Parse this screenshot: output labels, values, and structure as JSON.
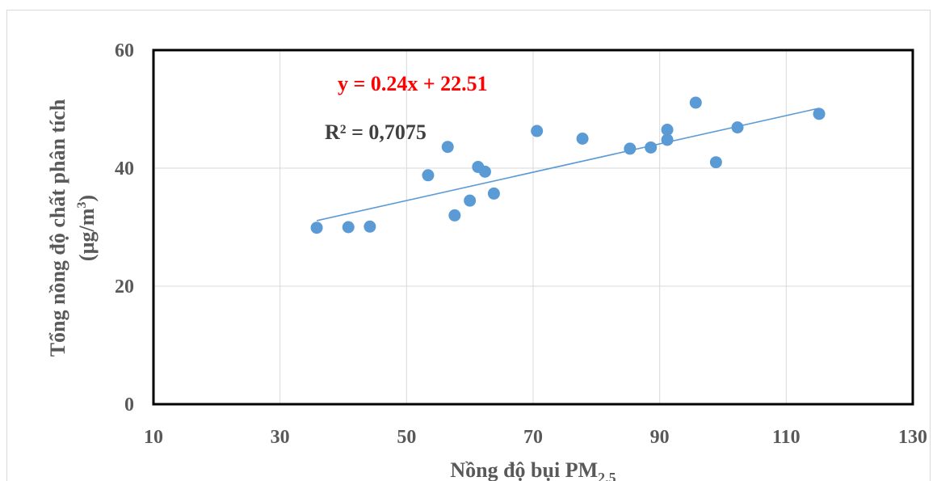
{
  "chart_data": {
    "type": "scatter",
    "xlabel": "Nồng độ bụi PM",
    "xlabel_subscript": "2.5",
    "ylabel_line1": "Tổng nồng độ chất phân tích",
    "ylabel_line2_prefix": "(µg/m",
    "ylabel_line2_superscript": "3",
    "ylabel_line2_suffix": ")",
    "xlim": [
      10,
      130
    ],
    "ylim": [
      0,
      60
    ],
    "x_ticks": [
      10,
      30,
      50,
      70,
      90,
      110,
      130
    ],
    "y_ticks": [
      0,
      20,
      40,
      60
    ],
    "grid": true,
    "points": [
      {
        "x": 35.8,
        "y": 29.9
      },
      {
        "x": 40.8,
        "y": 30.0
      },
      {
        "x": 44.2,
        "y": 30.1
      },
      {
        "x": 53.4,
        "y": 38.8
      },
      {
        "x": 56.5,
        "y": 43.6
      },
      {
        "x": 57.6,
        "y": 32.0
      },
      {
        "x": 60.0,
        "y": 34.5
      },
      {
        "x": 61.3,
        "y": 40.2
      },
      {
        "x": 62.4,
        "y": 39.4
      },
      {
        "x": 63.8,
        "y": 35.7
      },
      {
        "x": 70.6,
        "y": 46.3
      },
      {
        "x": 77.8,
        "y": 45.0
      },
      {
        "x": 85.3,
        "y": 43.3
      },
      {
        "x": 88.6,
        "y": 43.5
      },
      {
        "x": 91.2,
        "y": 46.5
      },
      {
        "x": 91.2,
        "y": 44.8
      },
      {
        "x": 95.7,
        "y": 51.1
      },
      {
        "x": 98.9,
        "y": 41.0
      },
      {
        "x": 102.3,
        "y": 46.9
      },
      {
        "x": 115.2,
        "y": 49.2
      }
    ],
    "trendline": {
      "slope": 0.24,
      "intercept": 22.51,
      "x_start": 35.8,
      "x_end": 115.2
    },
    "equation": "y = 0.24x + 22.51",
    "r_squared": "R² = 0,7075",
    "colors": {
      "points": "#5b9bd5",
      "trendline": "#5b9bd5",
      "equation": "#ff0000",
      "grid": "#d9d9d9"
    }
  }
}
